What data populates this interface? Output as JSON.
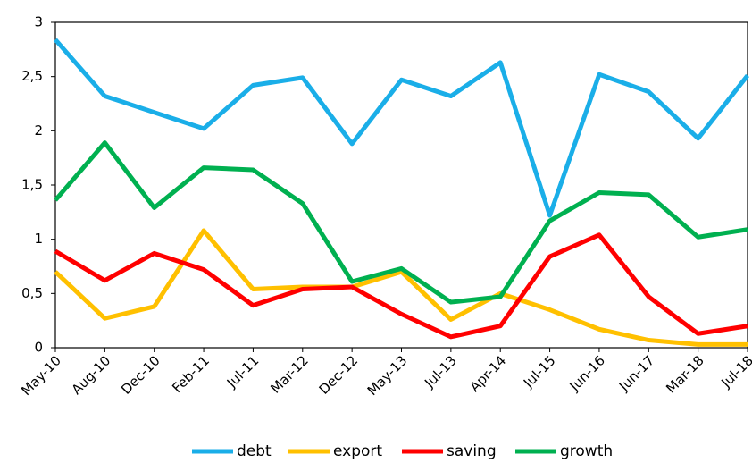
{
  "chart_data": {
    "type": "line",
    "categories": [
      "May-10",
      "Aug-10",
      "Dec-10",
      "Feb-11",
      "Jul-11",
      "Mar-12",
      "Dec-12",
      "May-13",
      "Jul-13",
      "Apr-14",
      "Jul-15",
      "Jun-16",
      "Jun-17",
      "Mar-18",
      "Jul-18"
    ],
    "series": [
      {
        "name": "debt",
        "color": "#1aaee8",
        "values": [
          2.84,
          2.32,
          2.17,
          2.02,
          2.42,
          2.49,
          1.88,
          2.47,
          2.32,
          2.63,
          1.22,
          2.52,
          2.36,
          1.93,
          2.51
        ]
      },
      {
        "name": "export",
        "color": "#ffc000",
        "values": [
          0.7,
          0.27,
          0.38,
          1.08,
          0.54,
          0.56,
          0.56,
          0.7,
          0.26,
          0.5,
          0.35,
          0.17,
          0.07,
          0.03,
          0.03
        ]
      },
      {
        "name": "saving",
        "color": "#ff0000",
        "values": [
          0.89,
          0.62,
          0.87,
          0.72,
          0.39,
          0.54,
          0.56,
          0.31,
          0.1,
          0.2,
          0.84,
          1.04,
          0.47,
          0.13,
          0.2
        ]
      },
      {
        "name": "growth",
        "color": "#00b050",
        "values": [
          1.36,
          1.89,
          1.29,
          1.66,
          1.64,
          1.33,
          0.61,
          0.73,
          0.42,
          0.47,
          1.17,
          1.43,
          1.41,
          1.02,
          1.09
        ]
      }
    ],
    "ylim": [
      0,
      3
    ],
    "yticks": [
      0,
      {
        "value": 0.5,
        "label": "0,5"
      },
      1,
      {
        "value": 1.5,
        "label": "1,5"
      },
      2,
      {
        "value": 2.5,
        "label": "2,5"
      },
      3
    ],
    "legend": "bottom"
  }
}
